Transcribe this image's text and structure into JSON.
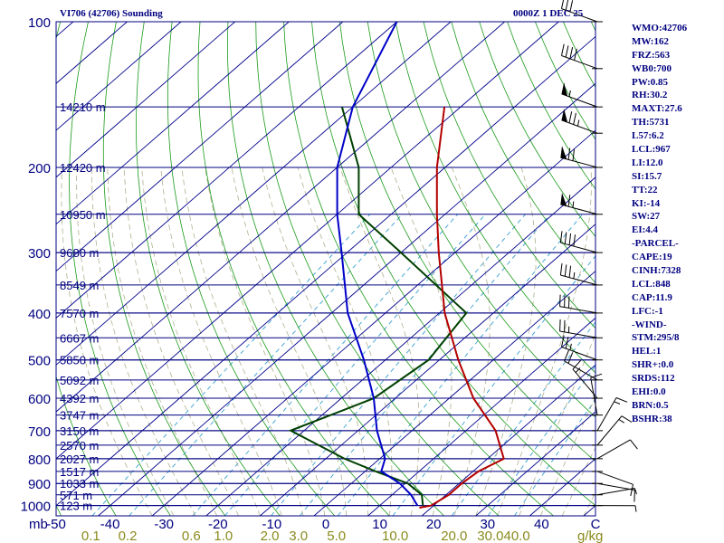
{
  "header": {
    "station": "VI706 (42706) Sounding",
    "time": "0000Z  1 DEC 25"
  },
  "colors": {
    "frame": "#000080",
    "isobar": "#000080",
    "isotherm": "#00008b",
    "dry_adiabat": "#1a9a1a",
    "moist_adiabat": "#b0b090",
    "mixing_ratio": "#39a0d0",
    "temperature": "#b40000",
    "dewpoint": "#0000c8",
    "parcel": "#004000",
    "wind": "#000000",
    "mixing_label": "#8a8a1e"
  },
  "chart_data": {
    "type": "skew-t log-p sounding",
    "pressure_axis_label": "mb",
    "pressure_levels": [
      100,
      200,
      300,
      400,
      500,
      600,
      700,
      800,
      900,
      1000
    ],
    "pressure_range": [
      100,
      1050
    ],
    "temperature_range": [
      -50,
      50
    ],
    "temperature_ticks": [
      "-50",
      "-40",
      "-30",
      "-20",
      "-10",
      "0",
      "10",
      "20",
      "30",
      "40",
      "C"
    ],
    "mixing_ratio_axis_unit": "g/kg",
    "mixing_ratio_labels": [
      "0.1",
      "0.2",
      "0.6",
      "1.0",
      "2.0",
      "3.0",
      "5.0",
      "10.0",
      "20.0",
      "30.0",
      "40.0"
    ],
    "mixing_ratio_values": [
      0.1,
      0.2,
      0.6,
      1.0,
      2.0,
      3.0,
      5.0,
      10.0,
      20.0,
      30.0,
      40.0
    ],
    "height_labels": [
      {
        "p": 150,
        "label": "14210 m"
      },
      {
        "p": 200,
        "label": "12420 m"
      },
      {
        "p": 250,
        "label": "10950 m"
      },
      {
        "p": 300,
        "label": "9680 m"
      },
      {
        "p": 350,
        "label": "8549 m"
      },
      {
        "p": 400,
        "label": "7570 m"
      },
      {
        "p": 450,
        "label": "6667 m"
      },
      {
        "p": 500,
        "label": "5850 m"
      },
      {
        "p": 550,
        "label": "5092 m"
      },
      {
        "p": 600,
        "label": "4392 m"
      },
      {
        "p": 650,
        "label": "3747 m"
      },
      {
        "p": 700,
        "label": "3150 m"
      },
      {
        "p": 750,
        "label": "2570 m"
      },
      {
        "p": 800,
        "label": "2027 m"
      },
      {
        "p": 850,
        "label": "1517 m"
      },
      {
        "p": 900,
        "label": "1033 m"
      },
      {
        "p": 950,
        "label": "571 m"
      },
      {
        "p": 1000,
        "label": "123 m"
      }
    ],
    "temperature_profile": [
      {
        "p": 1010,
        "t": 17.8
      },
      {
        "p": 1000,
        "t": 19.5
      },
      {
        "p": 950,
        "t": 20.5
      },
      {
        "p": 900,
        "t": 20.5
      },
      {
        "p": 850,
        "t": 21.0
      },
      {
        "p": 800,
        "t": 23.0
      },
      {
        "p": 700,
        "t": 15.5
      },
      {
        "p": 600,
        "t": 4.5
      },
      {
        "p": 500,
        "t": -6.5
      },
      {
        "p": 400,
        "t": -19.0
      },
      {
        "p": 300,
        "t": -33.0
      },
      {
        "p": 250,
        "t": -41.5
      },
      {
        "p": 200,
        "t": -51.5
      },
      {
        "p": 150,
        "t": -63.0
      }
    ],
    "dewpoint_profile": [
      {
        "p": 1000,
        "t": 17.0
      },
      {
        "p": 950,
        "t": 13.5
      },
      {
        "p": 900,
        "t": 9.0
      },
      {
        "p": 850,
        "t": 3.0
      },
      {
        "p": 800,
        "t": 1.0
      },
      {
        "p": 700,
        "t": -6.5
      },
      {
        "p": 600,
        "t": -14.0
      },
      {
        "p": 500,
        "t": -24.0
      },
      {
        "p": 400,
        "t": -37.0
      },
      {
        "p": 300,
        "t": -51.0
      },
      {
        "p": 250,
        "t": -60.0
      },
      {
        "p": 200,
        "t": -70.0
      },
      {
        "p": 150,
        "t": -80.0
      },
      {
        "p": 100,
        "t": -90.0
      }
    ],
    "parcel_profile": [
      {
        "p": 1000,
        "t": 18.0
      },
      {
        "p": 950,
        "t": 15.5
      },
      {
        "p": 900,
        "t": 10.5
      },
      {
        "p": 850,
        "t": 2.0
      },
      {
        "p": 800,
        "t": -6.5
      },
      {
        "p": 700,
        "t": -22.5
      },
      {
        "p": 600,
        "t": -14.0
      },
      {
        "p": 500,
        "t": -12.0
      },
      {
        "p": 400,
        "t": -15.0
      },
      {
        "p": 300,
        "t": -40.0
      },
      {
        "p": 250,
        "t": -56.0
      },
      {
        "p": 200,
        "t": -66.0
      },
      {
        "p": 150,
        "t": -82.0
      }
    ],
    "wind_barbs": [
      {
        "p": 1000,
        "dir": 90,
        "spd": 5
      },
      {
        "p": 950,
        "dir": 80,
        "spd": 5
      },
      {
        "p": 900,
        "dir": 100,
        "spd": 10
      },
      {
        "p": 850,
        "dir": 110,
        "spd": 10
      },
      {
        "p": 800,
        "dir": 60,
        "spd": 10
      },
      {
        "p": 750,
        "dir": 40,
        "spd": 15
      },
      {
        "p": 700,
        "dir": 30,
        "spd": 15
      },
      {
        "p": 650,
        "dir": 350,
        "spd": 10
      },
      {
        "p": 600,
        "dir": 320,
        "spd": 15
      },
      {
        "p": 550,
        "dir": 300,
        "spd": 20
      },
      {
        "p": 500,
        "dir": 290,
        "spd": 25
      },
      {
        "p": 450,
        "dir": 280,
        "spd": 25
      },
      {
        "p": 400,
        "dir": 280,
        "spd": 30
      },
      {
        "p": 350,
        "dir": 285,
        "spd": 35
      },
      {
        "p": 300,
        "dir": 285,
        "spd": 40
      },
      {
        "p": 250,
        "dir": 285,
        "spd": 65
      },
      {
        "p": 200,
        "dir": 285,
        "spd": 70
      },
      {
        "p": 170,
        "dir": 290,
        "spd": 75
      },
      {
        "p": 150,
        "dir": 290,
        "spd": 55
      },
      {
        "p": 125,
        "dir": 290,
        "spd": 40
      },
      {
        "p": 100,
        "dir": 290,
        "spd": 30
      }
    ]
  },
  "indices": [
    "WMO:42706",
    "MW:162",
    "FRZ:563",
    "WB0:700",
    "PW:0.85",
    "RH:30.2",
    "MAXT:27.6",
    "TH:5731",
    "L57:6.2",
    "LCL:967",
    "LI:12.0",
    "SI:15.7",
    "TT:22",
    "KI:-14",
    "SW:27",
    "EI:4.4",
    "-PARCEL-",
    "CAPE:19",
    "CINH:7328",
    "LCL:848",
    "CAP:11.9",
    "LFC:-1",
    "-WIND-",
    "STM:295/8",
    "HEL:1",
    "SHR+:0.0",
    "SRDS:112",
    "EHI:0.0",
    "BRN:0.5",
    "BSHR:38"
  ]
}
